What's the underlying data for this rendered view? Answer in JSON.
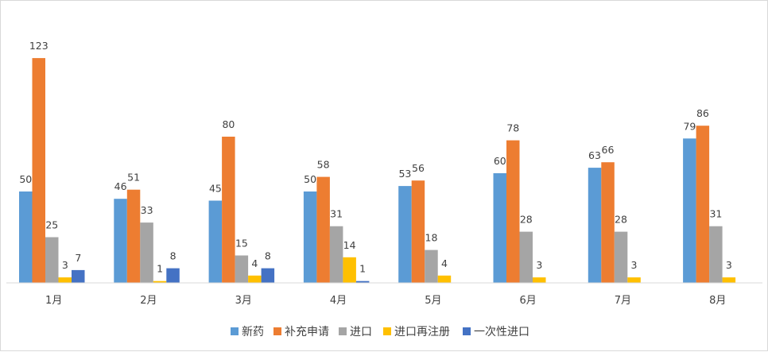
{
  "chart_data": {
    "type": "bar",
    "categories": [
      "1月",
      "2月",
      "3月",
      "4月",
      "5月",
      "6月",
      "7月",
      "8月"
    ],
    "series": [
      {
        "name": "新药",
        "color": "#5b9bd5",
        "values": [
          50,
          46,
          45,
          50,
          53,
          60,
          63,
          79
        ]
      },
      {
        "name": "补充申请",
        "color": "#ed7d31",
        "values": [
          123,
          51,
          80,
          58,
          56,
          78,
          66,
          86
        ]
      },
      {
        "name": "进口",
        "color": "#a5a5a5",
        "values": [
          25,
          33,
          15,
          31,
          18,
          28,
          28,
          31
        ]
      },
      {
        "name": "进口再注册",
        "color": "#ffc000",
        "values": [
          3,
          1,
          4,
          14,
          4,
          3,
          3,
          3
        ]
      },
      {
        "name": "一次性进口",
        "color": "#4472c4",
        "values": [
          7,
          8,
          8,
          1,
          null,
          null,
          null,
          null
        ]
      }
    ],
    "title": "",
    "xlabel": "",
    "ylabel": "",
    "ylim": [
      0,
      130
    ],
    "grid": false,
    "legend": "bottom"
  }
}
